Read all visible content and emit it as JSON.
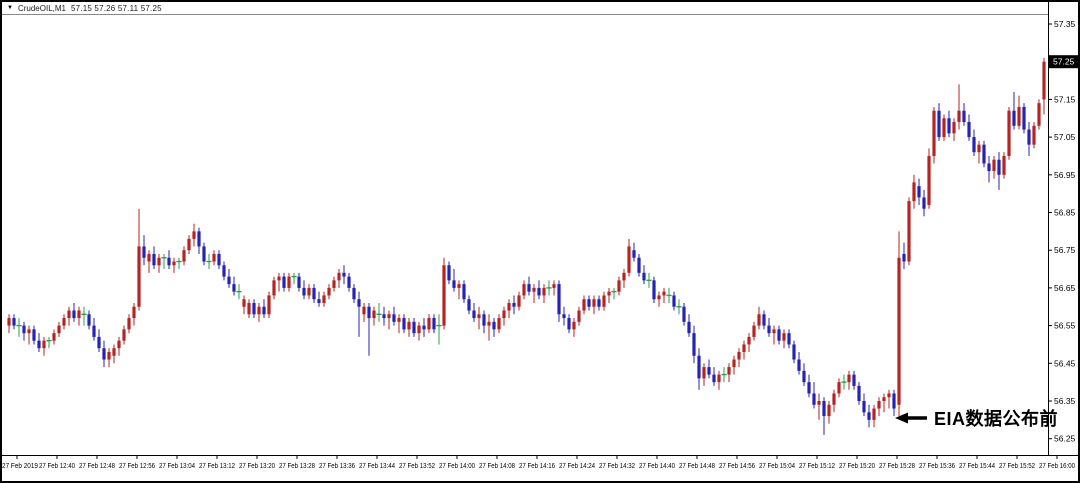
{
  "header": {
    "collapse_icon": "▼",
    "symbol_period": "CrudeOIL,M1",
    "ohlc": "57.15 57.26 57.11 57.25"
  },
  "annotation": {
    "text": "EIA数据公布前",
    "arrow_direction": "left"
  },
  "chart_data": {
    "type": "candlestick",
    "title": "CrudeOIL,M1",
    "symbol": "CrudeOIL",
    "timeframe": "M1",
    "current_bar": {
      "open": 57.15,
      "high": 57.26,
      "low": 57.11,
      "close": 57.25
    },
    "current_price": 57.25,
    "current_price_label": "57.25",
    "ylim": [
      56.22,
      57.38
    ],
    "y_ticks": [
      57.35,
      57.25,
      57.15,
      57.05,
      56.95,
      56.85,
      56.75,
      56.65,
      56.55,
      56.45,
      56.35,
      56.25
    ],
    "x_labels": [
      "27 Feb 2019",
      "27 Feb 12:40",
      "27 Feb 12:48",
      "27 Feb 12:56",
      "27 Feb 13:04",
      "27 Feb 13:12",
      "27 Feb 13:20",
      "27 Feb 13:28",
      "27 Feb 13:36",
      "27 Feb 13:44",
      "27 Feb 13:52",
      "27 Feb 14:00",
      "27 Feb 14:08",
      "27 Feb 14:16",
      "27 Feb 14:24",
      "27 Feb 14:32",
      "27 Feb 14:40",
      "27 Feb 14:48",
      "27 Feb 14:56",
      "27 Feb 15:04",
      "27 Feb 15:12",
      "27 Feb 15:20",
      "27 Feb 15:28",
      "27 Feb 15:36",
      "27 Feb 15:44",
      "27 Feb 15:52",
      "27 Feb 16:00"
    ],
    "x_label_interval_minutes": 8,
    "grid": false,
    "legend": false,
    "colors": {
      "up": "#b52423",
      "down": "#2423b5",
      "doji": "#2f9e4e",
      "axis_line": "#000000",
      "frame_line": "#8a8a8a",
      "label_text": "#000000",
      "current_price_box_bg": "#000000",
      "current_price_box_text": "#ffffff"
    },
    "candles": [
      [
        56.55,
        56.58,
        56.53,
        56.57
      ],
      [
        56.57,
        56.58,
        56.54,
        56.55
      ],
      [
        56.55,
        56.57,
        56.52,
        56.55
      ],
      [
        56.55,
        56.56,
        56.51,
        56.53
      ],
      [
        56.53,
        56.55,
        56.5,
        56.54
      ],
      [
        56.54,
        56.55,
        56.5,
        56.51
      ],
      [
        56.51,
        56.53,
        56.48,
        56.49
      ],
      [
        56.49,
        56.52,
        56.47,
        56.51
      ],
      [
        56.51,
        56.52,
        56.49,
        56.51
      ],
      [
        56.51,
        56.54,
        56.5,
        56.53
      ],
      [
        56.53,
        56.56,
        56.52,
        56.55
      ],
      [
        56.55,
        56.58,
        56.54,
        56.57
      ],
      [
        56.57,
        56.6,
        56.55,
        56.59
      ],
      [
        56.59,
        56.61,
        56.56,
        56.57
      ],
      [
        56.57,
        56.6,
        56.55,
        56.59
      ],
      [
        56.58,
        56.6,
        56.55,
        56.58
      ],
      [
        56.58,
        56.59,
        56.54,
        56.55
      ],
      [
        56.55,
        56.57,
        56.51,
        56.52
      ],
      [
        56.52,
        56.54,
        56.48,
        56.49
      ],
      [
        56.49,
        56.51,
        56.44,
        56.46
      ],
      [
        56.46,
        56.49,
        56.44,
        56.48
      ],
      [
        56.47,
        56.5,
        56.45,
        56.49
      ],
      [
        56.49,
        56.52,
        56.47,
        56.51
      ],
      [
        56.51,
        56.55,
        56.5,
        56.54
      ],
      [
        56.54,
        56.58,
        56.53,
        56.57
      ],
      [
        56.57,
        56.61,
        56.55,
        56.6
      ],
      [
        56.6,
        56.86,
        56.59,
        56.76
      ],
      [
        56.76,
        56.79,
        56.71,
        56.73
      ],
      [
        56.72,
        56.75,
        56.69,
        56.74
      ],
      [
        56.74,
        56.76,
        56.7,
        56.71
      ],
      [
        56.71,
        56.74,
        56.69,
        56.73
      ],
      [
        56.73,
        56.74,
        56.7,
        56.73
      ],
      [
        56.73,
        56.75,
        56.7,
        56.71
      ],
      [
        56.71,
        56.73,
        56.69,
        56.72
      ],
      [
        56.72,
        56.73,
        56.7,
        56.72
      ],
      [
        56.72,
        56.76,
        56.71,
        56.75
      ],
      [
        56.75,
        56.79,
        56.74,
        56.78
      ],
      [
        56.78,
        56.82,
        56.76,
        56.8
      ],
      [
        56.8,
        56.81,
        56.74,
        56.76
      ],
      [
        56.76,
        56.77,
        56.71,
        56.72
      ],
      [
        56.72,
        56.74,
        56.7,
        56.72
      ],
      [
        56.72,
        56.75,
        56.71,
        56.74
      ],
      [
        56.74,
        56.75,
        56.7,
        56.71
      ],
      [
        56.71,
        56.72,
        56.67,
        56.68
      ],
      [
        56.68,
        56.7,
        56.65,
        56.66
      ],
      [
        56.66,
        56.68,
        56.63,
        56.64
      ],
      [
        56.64,
        56.66,
        56.62,
        56.64
      ],
      [
        56.6,
        56.63,
        56.58,
        56.62
      ],
      [
        56.58,
        56.62,
        56.57,
        56.61
      ],
      [
        56.61,
        56.62,
        56.57,
        56.58
      ],
      [
        56.58,
        56.61,
        56.56,
        56.6
      ],
      [
        56.6,
        56.62,
        56.57,
        56.58
      ],
      [
        56.58,
        56.64,
        56.57,
        56.63
      ],
      [
        56.63,
        56.68,
        56.62,
        56.67
      ],
      [
        56.67,
        56.69,
        56.64,
        56.68
      ],
      [
        56.68,
        56.69,
        56.64,
        56.65
      ],
      [
        56.65,
        56.69,
        56.64,
        56.68
      ],
      [
        56.68,
        56.69,
        56.66,
        56.68
      ],
      [
        56.68,
        56.69,
        56.64,
        56.65
      ],
      [
        56.65,
        56.67,
        56.62,
        56.63
      ],
      [
        56.63,
        56.66,
        56.62,
        56.65
      ],
      [
        56.65,
        56.66,
        56.61,
        56.62
      ],
      [
        56.62,
        56.64,
        56.6,
        56.61
      ],
      [
        56.61,
        56.64,
        56.6,
        56.63
      ],
      [
        56.63,
        56.66,
        56.62,
        56.65
      ],
      [
        56.65,
        56.68,
        56.64,
        56.67
      ],
      [
        56.67,
        56.7,
        56.65,
        56.69
      ],
      [
        56.69,
        56.71,
        56.66,
        56.68
      ],
      [
        56.68,
        56.69,
        56.64,
        56.65
      ],
      [
        56.65,
        56.66,
        56.61,
        56.62
      ],
      [
        56.62,
        56.64,
        56.52,
        56.6
      ],
      [
        56.58,
        56.61,
        56.56,
        56.6
      ],
      [
        56.6,
        56.61,
        56.47,
        56.57
      ],
      [
        56.57,
        56.6,
        56.55,
        56.59
      ],
      [
        56.58,
        56.61,
        56.56,
        56.58
      ],
      [
        56.58,
        56.6,
        56.55,
        56.57
      ],
      [
        56.57,
        56.59,
        56.54,
        56.58
      ],
      [
        56.58,
        56.6,
        56.55,
        56.56
      ],
      [
        56.56,
        56.58,
        56.53,
        56.57
      ],
      [
        56.57,
        56.58,
        56.53,
        56.54
      ],
      [
        56.54,
        56.57,
        56.52,
        56.56
      ],
      [
        56.56,
        56.57,
        56.52,
        56.53
      ],
      [
        56.53,
        56.56,
        56.51,
        56.55
      ],
      [
        56.55,
        56.57,
        56.52,
        56.54
      ],
      [
        56.54,
        56.58,
        56.53,
        56.57
      ],
      [
        56.57,
        56.58,
        56.53,
        56.54
      ],
      [
        56.55,
        56.58,
        56.5,
        56.55
      ],
      [
        56.55,
        56.73,
        56.54,
        56.71
      ],
      [
        56.71,
        56.72,
        56.66,
        56.67
      ],
      [
        56.67,
        56.7,
        56.64,
        56.65
      ],
      [
        56.65,
        56.67,
        56.62,
        56.66
      ],
      [
        56.66,
        56.67,
        56.61,
        56.62
      ],
      [
        56.62,
        56.63,
        56.58,
        56.59
      ],
      [
        56.59,
        56.61,
        56.56,
        56.57
      ],
      [
        56.57,
        56.6,
        56.54,
        56.58
      ],
      [
        56.58,
        56.59,
        56.53,
        56.55
      ],
      [
        56.55,
        56.58,
        56.51,
        56.56
      ],
      [
        56.56,
        56.57,
        56.52,
        56.54
      ],
      [
        56.54,
        56.58,
        56.53,
        56.57
      ],
      [
        56.57,
        56.6,
        56.55,
        56.59
      ],
      [
        56.59,
        56.62,
        56.57,
        56.61
      ],
      [
        56.61,
        56.63,
        56.58,
        56.6
      ],
      [
        56.6,
        56.64,
        56.59,
        56.63
      ],
      [
        56.63,
        56.67,
        56.62,
        56.66
      ],
      [
        56.66,
        56.68,
        56.63,
        56.64
      ],
      [
        56.64,
        56.66,
        56.61,
        56.65
      ],
      [
        56.65,
        56.67,
        56.62,
        56.63
      ],
      [
        56.63,
        56.66,
        56.61,
        56.65
      ],
      [
        56.65,
        56.67,
        56.63,
        56.65
      ],
      [
        56.65,
        56.67,
        56.63,
        56.66
      ],
      [
        56.66,
        56.67,
        56.56,
        56.58
      ],
      [
        56.58,
        56.6,
        56.55,
        56.57
      ],
      [
        56.57,
        56.58,
        56.53,
        56.54
      ],
      [
        56.54,
        56.57,
        56.52,
        56.56
      ],
      [
        56.56,
        56.6,
        56.55,
        56.59
      ],
      [
        56.59,
        56.63,
        56.58,
        56.62
      ],
      [
        56.62,
        56.63,
        56.59,
        56.6
      ],
      [
        56.6,
        56.63,
        56.58,
        56.62
      ],
      [
        56.62,
        56.63,
        56.59,
        56.6
      ],
      [
        56.6,
        56.64,
        56.59,
        56.63
      ],
      [
        56.63,
        56.65,
        56.61,
        56.64
      ],
      [
        56.64,
        56.65,
        56.62,
        56.64
      ],
      [
        56.64,
        56.68,
        56.63,
        56.67
      ],
      [
        56.67,
        56.7,
        56.65,
        56.69
      ],
      [
        56.69,
        56.78,
        56.68,
        56.76
      ],
      [
        56.75,
        56.77,
        56.72,
        56.73
      ],
      [
        56.73,
        56.74,
        56.68,
        56.69
      ],
      [
        56.69,
        56.71,
        56.66,
        56.67
      ],
      [
        56.67,
        56.69,
        56.65,
        56.67
      ],
      [
        56.67,
        56.68,
        56.61,
        56.62
      ],
      [
        56.62,
        56.64,
        56.6,
        56.63
      ],
      [
        56.63,
        56.65,
        56.61,
        56.64
      ],
      [
        56.63,
        56.65,
        56.61,
        56.63
      ],
      [
        56.63,
        56.64,
        56.59,
        56.6
      ],
      [
        56.6,
        56.62,
        56.58,
        56.6
      ],
      [
        56.6,
        56.61,
        56.55,
        56.56
      ],
      [
        56.56,
        56.58,
        56.52,
        56.53
      ],
      [
        56.53,
        56.55,
        56.45,
        56.47
      ],
      [
        56.47,
        56.49,
        56.38,
        56.41
      ],
      [
        56.41,
        56.45,
        56.39,
        56.44
      ],
      [
        56.44,
        56.46,
        56.41,
        56.42
      ],
      [
        56.42,
        56.44,
        56.39,
        56.4
      ],
      [
        56.4,
        56.43,
        56.38,
        56.42
      ],
      [
        56.42,
        56.44,
        56.4,
        56.42
      ],
      [
        56.42,
        56.45,
        56.4,
        56.44
      ],
      [
        56.44,
        56.47,
        56.42,
        56.46
      ],
      [
        56.46,
        56.49,
        56.44,
        56.48
      ],
      [
        56.48,
        56.51,
        56.46,
        56.5
      ],
      [
        56.5,
        56.53,
        56.48,
        56.52
      ],
      [
        56.52,
        56.56,
        56.51,
        56.55
      ],
      [
        56.55,
        56.6,
        56.54,
        56.58
      ],
      [
        56.58,
        56.59,
        56.54,
        56.55
      ],
      [
        56.55,
        56.57,
        56.52,
        56.53
      ],
      [
        56.53,
        56.55,
        56.5,
        56.54
      ],
      [
        56.54,
        56.55,
        56.5,
        56.51
      ],
      [
        56.51,
        56.54,
        56.49,
        56.53
      ],
      [
        56.53,
        56.54,
        56.49,
        56.5
      ],
      [
        56.5,
        56.51,
        56.45,
        56.46
      ],
      [
        56.46,
        56.48,
        56.42,
        56.43
      ],
      [
        56.43,
        56.45,
        56.39,
        56.4
      ],
      [
        56.4,
        56.42,
        56.36,
        56.37
      ],
      [
        56.37,
        56.4,
        56.33,
        56.34
      ],
      [
        56.34,
        56.37,
        56.3,
        56.35
      ],
      [
        56.35,
        56.36,
        56.26,
        56.31
      ],
      [
        56.31,
        56.35,
        56.29,
        56.34
      ],
      [
        56.34,
        56.38,
        56.32,
        56.37
      ],
      [
        56.37,
        56.41,
        56.36,
        56.4
      ],
      [
        56.4,
        56.42,
        56.38,
        56.4
      ],
      [
        56.4,
        56.43,
        56.38,
        56.42
      ],
      [
        56.42,
        56.43,
        56.38,
        56.39
      ],
      [
        56.39,
        56.4,
        56.34,
        56.35
      ],
      [
        56.35,
        56.37,
        56.31,
        56.32
      ],
      [
        56.32,
        56.34,
        56.28,
        56.3
      ],
      [
        56.3,
        56.34,
        56.28,
        56.33
      ],
      [
        56.33,
        56.36,
        56.31,
        56.35
      ],
      [
        56.35,
        56.37,
        56.32,
        56.36
      ],
      [
        56.36,
        56.38,
        56.33,
        56.37
      ],
      [
        56.37,
        56.38,
        56.31,
        56.33
      ],
      [
        56.34,
        56.8,
        56.31,
        56.73
      ],
      [
        56.74,
        56.77,
        56.7,
        56.72
      ],
      [
        56.72,
        56.89,
        56.71,
        56.88
      ],
      [
        56.88,
        56.95,
        56.86,
        56.93
      ],
      [
        56.92,
        56.94,
        56.87,
        56.89
      ],
      [
        56.89,
        56.91,
        56.84,
        56.86
      ],
      [
        56.87,
        57.02,
        56.86,
        57.0
      ],
      [
        57.0,
        57.13,
        56.98,
        57.12
      ],
      [
        57.12,
        57.14,
        57.04,
        57.05
      ],
      [
        57.05,
        57.11,
        57.04,
        57.1
      ],
      [
        57.1,
        57.12,
        57.05,
        57.06
      ],
      [
        57.06,
        57.1,
        57.04,
        57.09
      ],
      [
        57.09,
        57.19,
        57.07,
        57.12
      ],
      [
        57.12,
        57.14,
        57.08,
        57.09
      ],
      [
        57.09,
        57.11,
        57.04,
        57.05
      ],
      [
        57.05,
        57.07,
        57.0,
        57.01
      ],
      [
        57.01,
        57.04,
        56.98,
        57.03
      ],
      [
        57.03,
        57.04,
        56.97,
        56.98
      ],
      [
        56.98,
        57.0,
        56.93,
        56.96
      ],
      [
        56.96,
        57.0,
        56.94,
        56.99
      ],
      [
        56.99,
        57.01,
        56.91,
        56.95
      ],
      [
        56.95,
        57.01,
        56.94,
        57.0
      ],
      [
        57.0,
        57.13,
        56.99,
        57.12
      ],
      [
        57.12,
        57.17,
        57.07,
        57.08
      ],
      [
        57.08,
        57.16,
        57.07,
        57.13
      ],
      [
        57.13,
        57.14,
        57.06,
        57.07
      ],
      [
        57.07,
        57.09,
        57.0,
        57.03
      ],
      [
        57.03,
        57.09,
        57.02,
        57.08
      ],
      [
        57.08,
        57.15,
        57.07,
        57.14
      ],
      [
        57.15,
        57.26,
        57.11,
        57.25
      ]
    ]
  }
}
